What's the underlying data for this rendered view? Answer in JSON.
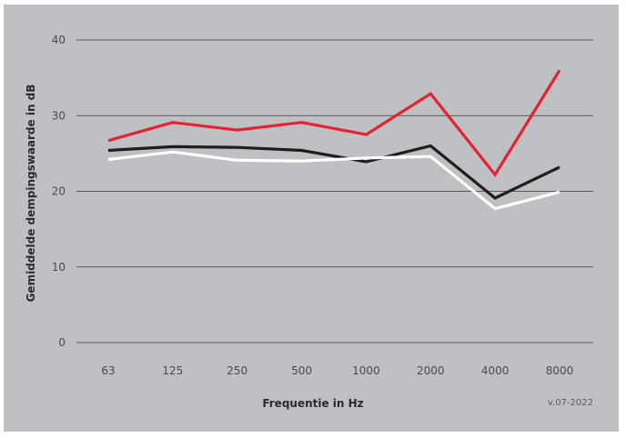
{
  "chart_data": {
    "type": "line",
    "title": "",
    "xlabel": "Frequentie in Hz",
    "ylabel": "Gemiddelde dempingswaarde in dB",
    "version": "v.07-2022",
    "categories": [
      "63",
      "125",
      "250",
      "500",
      "1000",
      "2000",
      "4000",
      "8000"
    ],
    "ylim": [
      0,
      40
    ],
    "yticks": [
      0,
      10,
      20,
      30,
      40
    ],
    "grid": true,
    "legend": "none",
    "series": [
      {
        "color": "#e3232f",
        "values": [
          26.7,
          29.1,
          28.1,
          29.1,
          27.5,
          32.9,
          22.2,
          36.0
        ]
      },
      {
        "color": "#1e1e1e",
        "values": [
          25.4,
          25.9,
          25.8,
          25.4,
          23.9,
          26.0,
          19.1,
          23.2
        ]
      },
      {
        "color": "#ffffff",
        "values": [
          24.2,
          25.2,
          24.1,
          24.0,
          24.4,
          24.6,
          17.7,
          19.9
        ]
      }
    ]
  }
}
